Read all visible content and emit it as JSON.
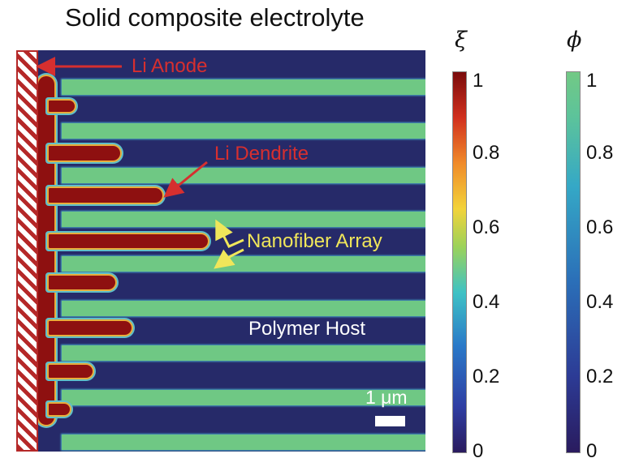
{
  "title": "Solid composite electrolyte",
  "labels": {
    "anode": "Li Anode",
    "dendrite": "Li Dendrite",
    "nanofiber": "Nanofiber Array",
    "host": "Polymer Host",
    "scale": "1 μm"
  },
  "colorbars": [
    {
      "symbol": "ξ",
      "ticks": [
        "1",
        "0.8",
        "0.6",
        "0.4",
        "0.2",
        "0"
      ]
    },
    {
      "symbol": "ϕ",
      "ticks": [
        "1",
        "0.8",
        "0.6",
        "0.4",
        "0.2",
        "0"
      ]
    }
  ],
  "colors": {
    "polymer_host": "#262a69",
    "nanofiber": "#6fc884",
    "dendrite": "#8e1010",
    "annotation_red": "#d62f2f",
    "annotation_yellow": "#f0e65a"
  }
}
